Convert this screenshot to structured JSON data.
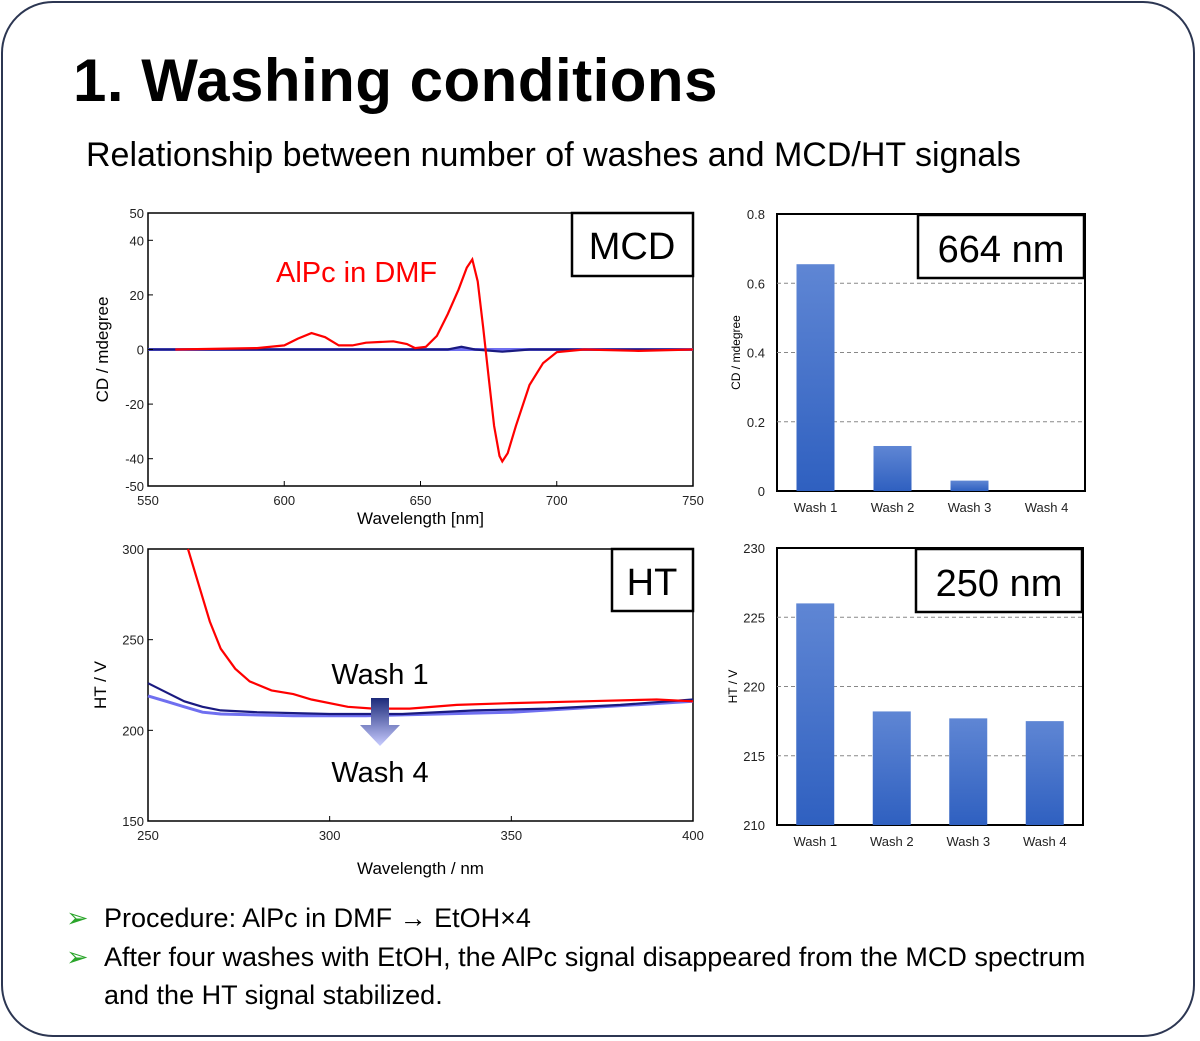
{
  "title": "1. Washing conditions",
  "subtitle": "Relationship between number of washes and MCD/HT signals",
  "bullets": [
    {
      "icon": "green-arrow-bullet-icon",
      "text": "Procedure: AlPc in DMF → EtOH×4"
    },
    {
      "icon": "green-arrow-bullet-icon",
      "text": "After four washes with EtOH, the AlPc signal disappeared from the MCD spectrum and the HT signal stabilized."
    }
  ],
  "colors": {
    "red": "#ff0000",
    "navy": "#1a1a80",
    "lightblue": "#6f6ff0",
    "bar": "#3b6cc8",
    "bullet": "#2aa52a"
  },
  "chart_data": [
    {
      "type": "line",
      "label": "MCD",
      "annotation": "AlPc in DMF",
      "xlabel": "Wavelength [nm]",
      "ylabel": "CD / mdegree",
      "xlim": [
        550,
        750
      ],
      "ylim": [
        -50,
        50
      ],
      "xticks": [
        "550",
        "600",
        "650",
        "700",
        "750"
      ],
      "yticks": [
        "50",
        "40",
        "20",
        "0",
        "-20",
        "-40",
        "-50"
      ],
      "series": [
        {
          "color": "#ff0000",
          "points": [
            [
              560,
              0
            ],
            [
              590,
              0.5
            ],
            [
              600,
              1.5
            ],
            [
              605,
              4
            ],
            [
              610,
              6
            ],
            [
              615,
              4.5
            ],
            [
              620,
              1.5
            ],
            [
              625,
              1.5
            ],
            [
              630,
              2.5
            ],
            [
              640,
              3
            ],
            [
              645,
              2
            ],
            [
              648,
              0.5
            ],
            [
              652,
              1
            ],
            [
              656,
              5
            ],
            [
              660,
              13
            ],
            [
              664,
              22
            ],
            [
              667,
              30
            ],
            [
              669,
              33
            ],
            [
              671,
              25
            ],
            [
              673,
              8
            ],
            [
              675,
              -10
            ],
            [
              677,
              -28
            ],
            [
              679,
              -39
            ],
            [
              680,
              -41
            ],
            [
              682,
              -38
            ],
            [
              685,
              -28
            ],
            [
              690,
              -13
            ],
            [
              695,
              -5
            ],
            [
              700,
              -1
            ],
            [
              710,
              0
            ],
            [
              730,
              -0.5
            ],
            [
              750,
              0
            ]
          ]
        },
        {
          "color": "#1a1a80",
          "points": [
            [
              550,
              0
            ],
            [
              620,
              0
            ],
            [
              660,
              0
            ],
            [
              665,
              1
            ],
            [
              670,
              0
            ],
            [
              680,
              -0.8
            ],
            [
              690,
              0
            ],
            [
              750,
              0
            ]
          ]
        },
        {
          "color": "#6f6ff0",
          "points": [
            [
              550,
              0
            ],
            [
              750,
              0
            ]
          ]
        }
      ]
    },
    {
      "type": "bar",
      "label": "664 nm",
      "ylabel": "CD / mdegree",
      "ylim": [
        0,
        0.8
      ],
      "yticks": [
        "0.8",
        "0.6",
        "0.4",
        "0.2",
        "0"
      ],
      "categories": [
        "Wash 1",
        "Wash 2",
        "Wash 3",
        "Wash 4"
      ],
      "values": [
        0.655,
        0.13,
        0.03,
        0
      ],
      "grid": "dashed"
    },
    {
      "type": "line",
      "label": "HT",
      "annotations": [
        "Wash 1",
        "Wash 4"
      ],
      "xlabel": "Wavelength / nm",
      "ylabel": "HT / V",
      "xlim": [
        250,
        400
      ],
      "ylim": [
        150,
        300
      ],
      "xticks": [
        "250",
        "300",
        "350",
        "400"
      ],
      "yticks": [
        "300",
        "250",
        "200",
        "150"
      ],
      "series": [
        {
          "color": "#ff0000",
          "points": [
            [
              261,
              300
            ],
            [
              264,
              280
            ],
            [
              267,
              260
            ],
            [
              270,
              245
            ],
            [
              274,
              234
            ],
            [
              278,
              227
            ],
            [
              284,
              222
            ],
            [
              290,
              220
            ],
            [
              295,
              217
            ],
            [
              305,
              213
            ],
            [
              312,
              212
            ],
            [
              322,
              212
            ],
            [
              335,
              214
            ],
            [
              350,
              215
            ],
            [
              370,
              216
            ],
            [
              390,
              217
            ],
            [
              400,
              216
            ]
          ]
        },
        {
          "color": "#1a1a80",
          "points": [
            [
              250,
              226
            ],
            [
              255,
              221
            ],
            [
              260,
              216
            ],
            [
              265,
              213
            ],
            [
              270,
              211
            ],
            [
              280,
              210
            ],
            [
              300,
              209
            ],
            [
              320,
              209
            ],
            [
              340,
              211
            ],
            [
              360,
              212
            ],
            [
              380,
              214
            ],
            [
              400,
              217
            ]
          ]
        },
        {
          "color": "#6f6ff0",
          "points": [
            [
              250,
              219
            ],
            [
              255,
              216
            ],
            [
              260,
              213
            ],
            [
              265,
              210
            ],
            [
              270,
              209
            ],
            [
              290,
              208
            ],
            [
              310,
              208
            ],
            [
              330,
              209
            ],
            [
              350,
              210
            ],
            [
              375,
              213
            ],
            [
              400,
              216
            ]
          ]
        }
      ]
    },
    {
      "type": "bar",
      "label": "250 nm",
      "ylabel": "HT / V",
      "ylim": [
        210,
        230
      ],
      "yticks": [
        "230",
        "225",
        "220",
        "215",
        "210"
      ],
      "categories": [
        "Wash 1",
        "Wash 2",
        "Wash 3",
        "Wash 4"
      ],
      "values": [
        226,
        218.2,
        217.7,
        217.5
      ],
      "grid": "dashed"
    }
  ]
}
